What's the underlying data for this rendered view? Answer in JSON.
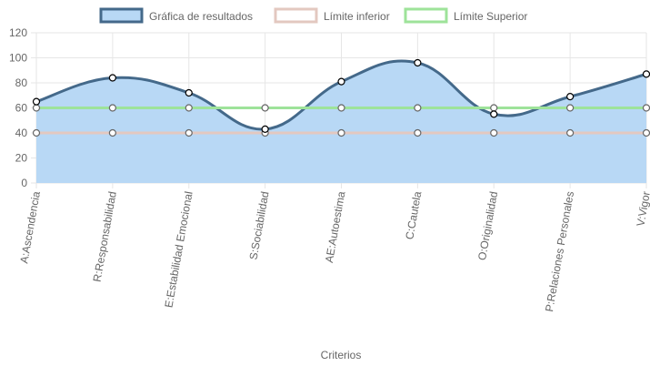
{
  "chart_data": {
    "type": "line",
    "categories": [
      "A:Ascendencia",
      "R:Responsabilidad",
      "E:Estabilidad Emocional",
      "S:Sociabilidad",
      "AE:Autoestima",
      "C:Cautela",
      "O:Originalidad",
      "P:Relaciones Personales",
      "V:Vigor"
    ],
    "series": [
      {
        "name": "Gráfica de resultados",
        "values": [
          65,
          84,
          72,
          43,
          81,
          96,
          55,
          69,
          87
        ],
        "color": "#44698a",
        "fill": "#b8d8f5",
        "filled": true,
        "smooth": true
      },
      {
        "name": "Límite inferior",
        "values": [
          40,
          40,
          40,
          40,
          40,
          40,
          40,
          40,
          40
        ],
        "color": "#e3c8c0",
        "filled": false,
        "smooth": false
      },
      {
        "name": "Límite Superior",
        "values": [
          60,
          60,
          60,
          60,
          60,
          60,
          60,
          60,
          60
        ],
        "color": "#9ee39a",
        "filled": false,
        "smooth": false
      }
    ],
    "xlabel": "Criterios",
    "ylabel": "",
    "ylim": [
      0,
      120
    ],
    "yticks": [
      0,
      20,
      40,
      60,
      80,
      100,
      120
    ],
    "grid": true,
    "legend": "top"
  }
}
